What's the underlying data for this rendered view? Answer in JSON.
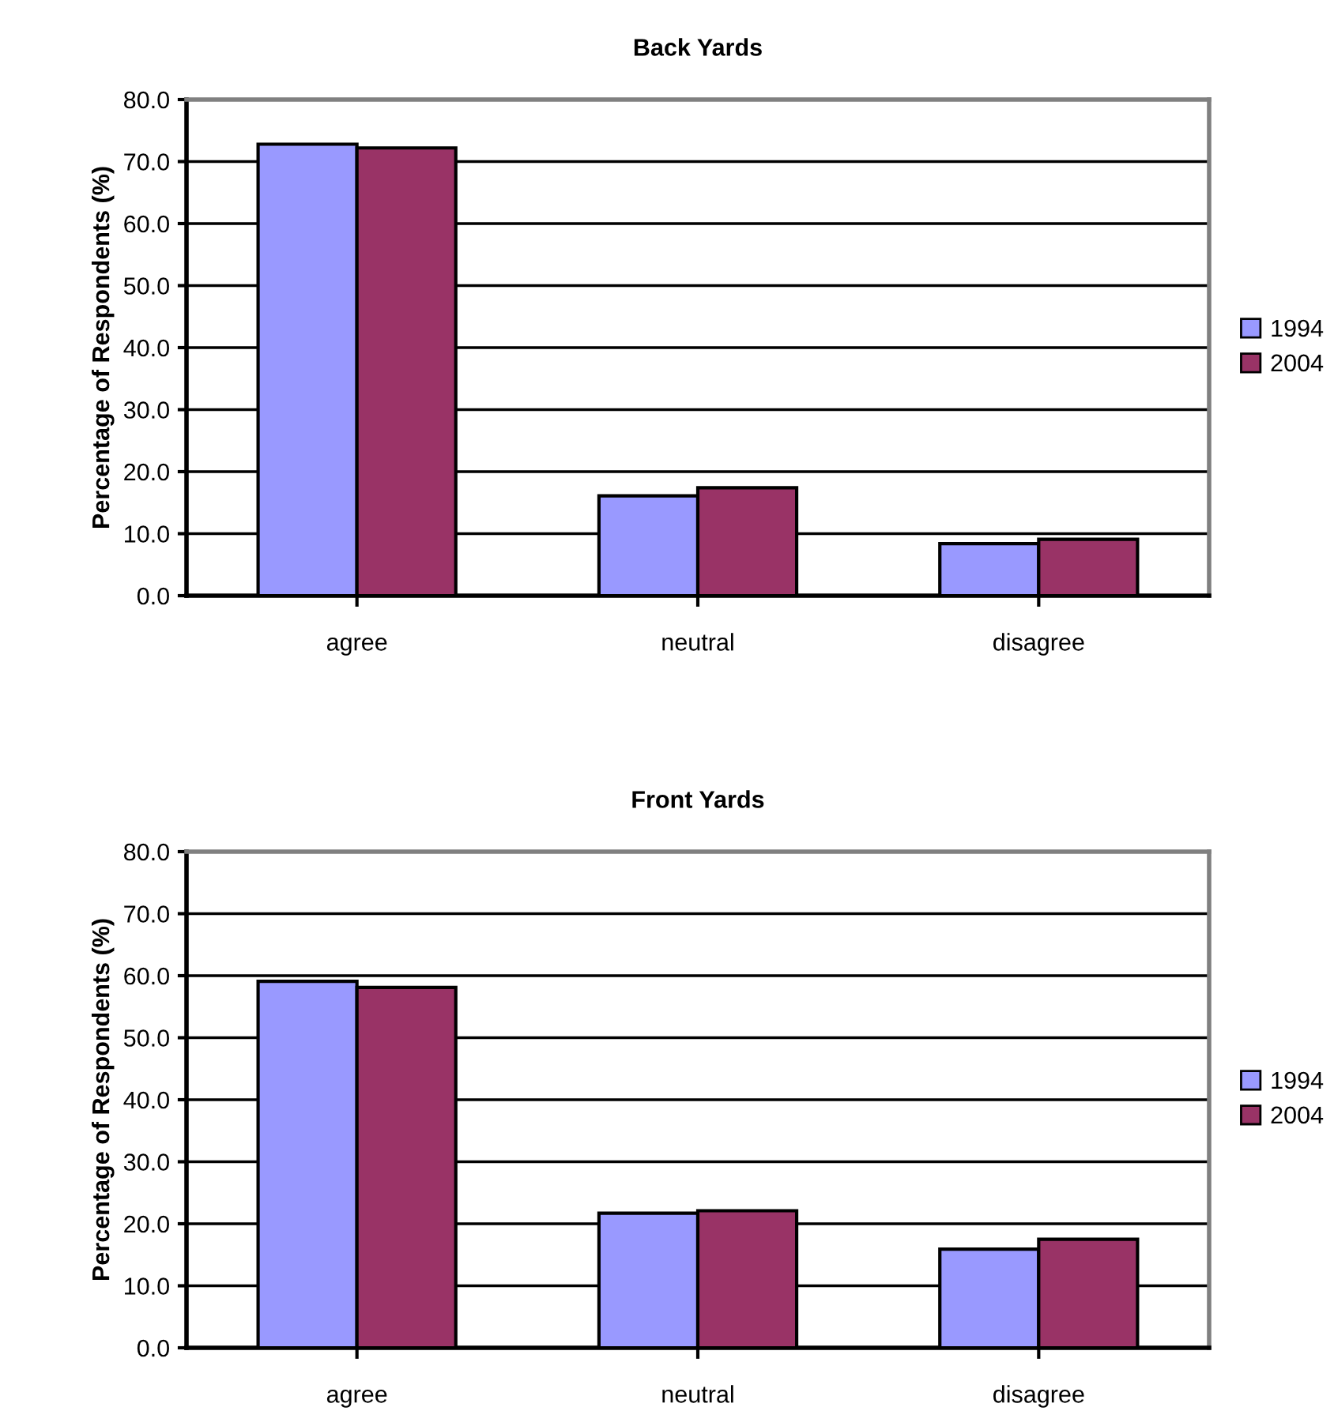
{
  "chart_data": [
    {
      "type": "bar",
      "title": "Back Yards",
      "ylabel": "Percentage of Respondents (%)",
      "categories": [
        "agree",
        "neutral",
        "disagree"
      ],
      "series": [
        {
          "name": "1994",
          "color": "#9999ff",
          "values": [
            72.8,
            16.1,
            8.4
          ]
        },
        {
          "name": "2004",
          "color": "#993366",
          "values": [
            72.2,
            17.4,
            9.1
          ]
        }
      ],
      "ylim": [
        0,
        80
      ],
      "yticks": [
        {
          "value": 0,
          "label": "0.0"
        },
        {
          "value": 10,
          "label": "10.0"
        },
        {
          "value": 20,
          "label": "20.0"
        },
        {
          "value": 30,
          "label": "30.0"
        },
        {
          "value": 40,
          "label": "40.0"
        },
        {
          "value": 50,
          "label": "50.0"
        },
        {
          "value": 60,
          "label": "60.0"
        },
        {
          "value": 70,
          "label": "70.0"
        },
        {
          "value": 80,
          "label": "80.0"
        }
      ],
      "grid": "y",
      "legend": "right"
    },
    {
      "type": "bar",
      "title": "Front Yards",
      "ylabel": "Percentage of Respondents (%)",
      "categories": [
        "agree",
        "neutral",
        "disagree"
      ],
      "series": [
        {
          "name": "1994",
          "color": "#9999ff",
          "values": [
            59.1,
            21.7,
            15.9
          ]
        },
        {
          "name": "2004",
          "color": "#993366",
          "values": [
            58.1,
            22.1,
            17.5
          ]
        }
      ],
      "ylim": [
        0,
        80
      ],
      "yticks": [
        {
          "value": 0,
          "label": "0.0"
        },
        {
          "value": 10,
          "label": "10.0"
        },
        {
          "value": 20,
          "label": "20.0"
        },
        {
          "value": 30,
          "label": "30.0"
        },
        {
          "value": 40,
          "label": "40.0"
        },
        {
          "value": 50,
          "label": "50.0"
        },
        {
          "value": 60,
          "label": "60.0"
        },
        {
          "value": 70,
          "label": "70.0"
        },
        {
          "value": 80,
          "label": "80.0"
        }
      ],
      "grid": "y",
      "legend": "right"
    }
  ]
}
